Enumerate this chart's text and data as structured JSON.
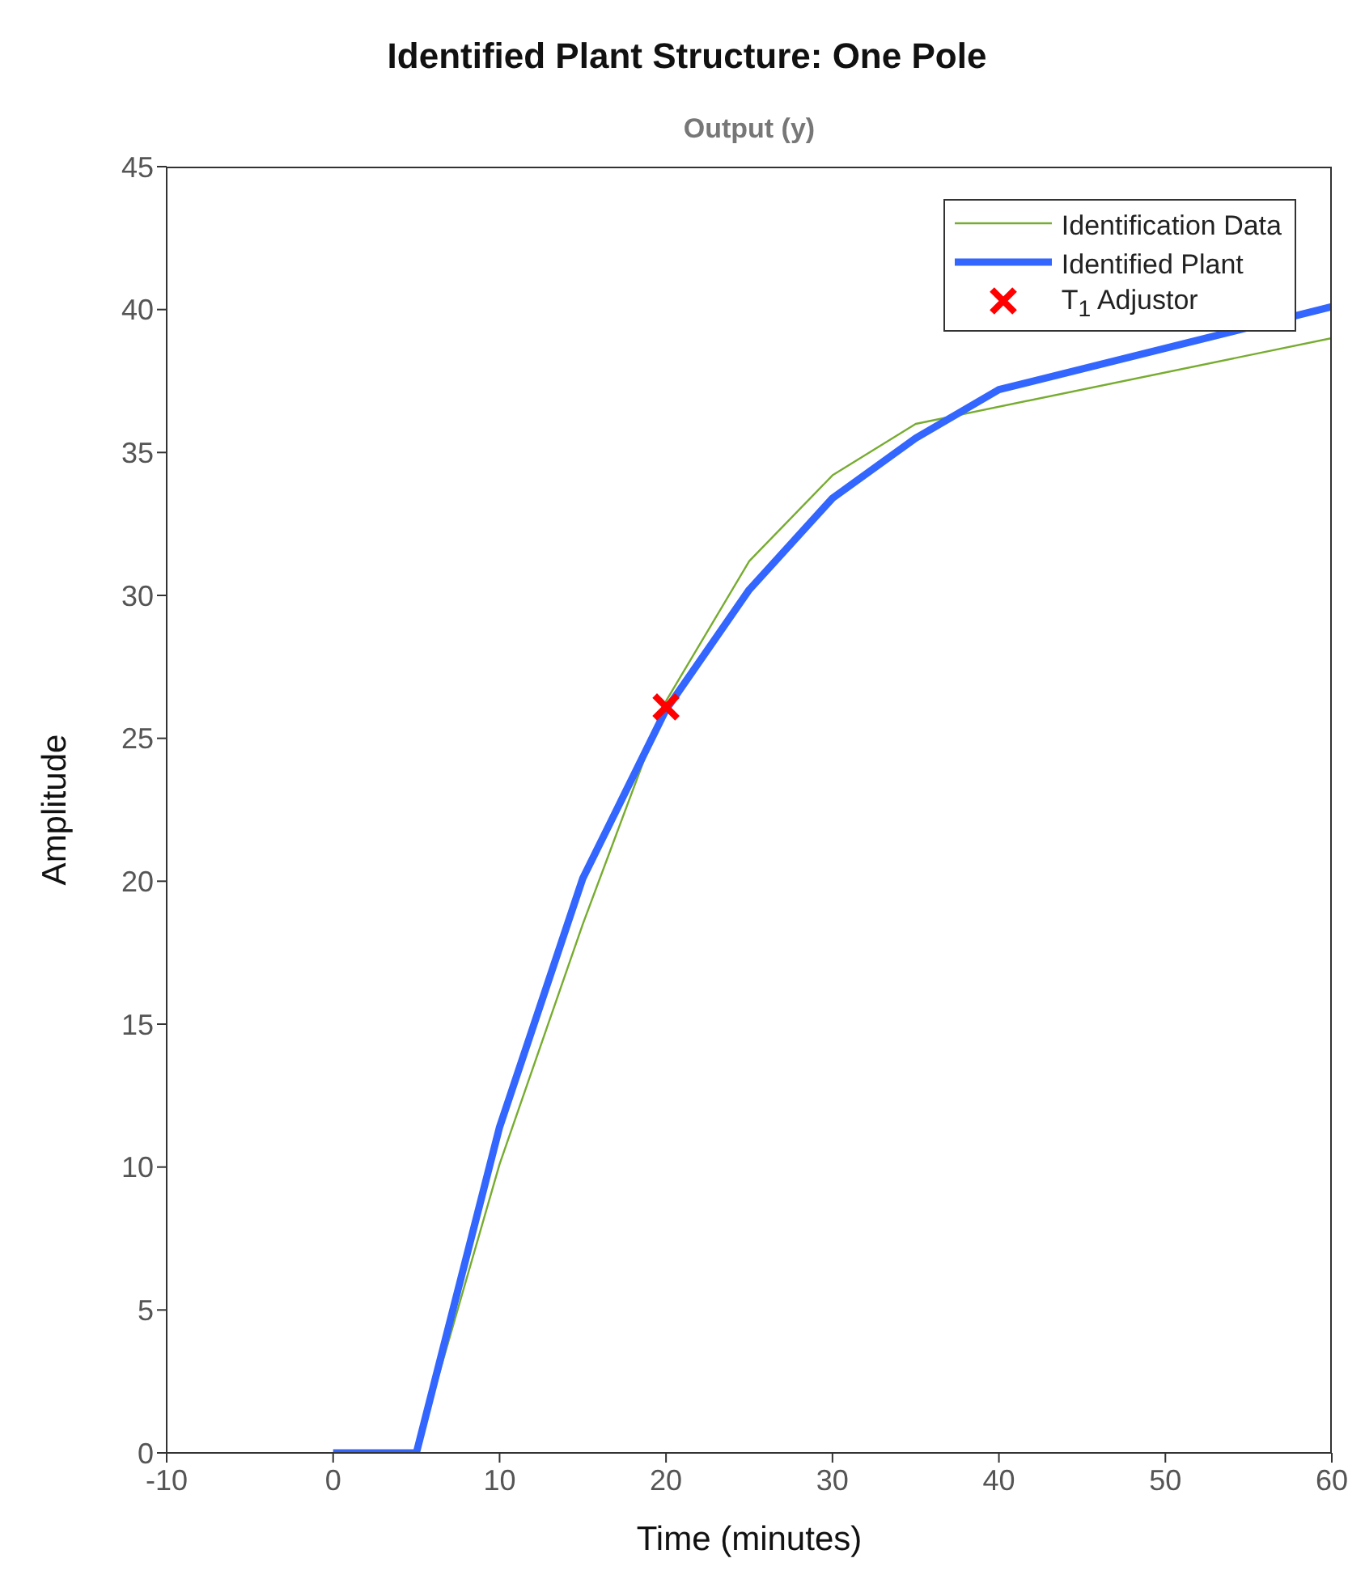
{
  "chart_data": {
    "type": "line",
    "title": "Identified Plant Structure: One Pole",
    "subtitle": "Output (y)",
    "xlabel": "Time (minutes)",
    "ylabel": "Amplitude",
    "x": [
      0,
      5,
      10,
      15,
      20,
      25,
      30,
      35,
      40,
      45,
      50,
      55,
      60
    ],
    "series": [
      {
        "name": "Identification Data",
        "color": "#77ac30",
        "values": [
          0,
          0,
          10.1,
          18.5,
          26.3,
          31.2,
          34.2,
          36.0,
          null,
          null,
          null,
          null,
          39.0
        ]
      },
      {
        "name": "Identified Plant",
        "color": "#3366ff",
        "values": [
          0,
          0,
          11.4,
          20.1,
          26.0,
          30.2,
          33.4,
          35.5,
          37.2,
          null,
          null,
          null,
          40.1
        ]
      },
      {
        "name": "T$_{1}$ Adjustor",
        "type": "scatter",
        "marker": "cross",
        "color": "#ff0000",
        "x": [
          20
        ],
        "values": [
          26.1
        ]
      }
    ],
    "xlim": [
      -10,
      60
    ],
    "xticks": [
      -10,
      0,
      10,
      20,
      30,
      40,
      50,
      60
    ],
    "ylim": [
      0,
      45
    ],
    "yticks": [
      0,
      5,
      10,
      15,
      20,
      25,
      30,
      35,
      40,
      45
    ],
    "grid": false,
    "legend": "top right",
    "marker": "none"
  }
}
